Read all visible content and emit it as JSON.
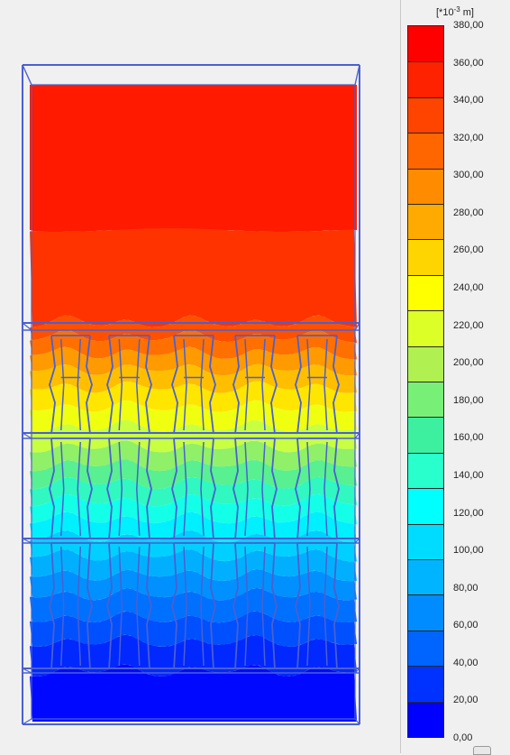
{
  "legend": {
    "unit_prefix": "[*10",
    "unit_exponent": "-3",
    "unit_suffix": " m]",
    "ticks": [
      "380,00",
      "360,00",
      "340,00",
      "320,00",
      "300,00",
      "280,00",
      "260,00",
      "240,00",
      "220,00",
      "200,00",
      "180,00",
      "160,00",
      "140,00",
      "120,00",
      "100,00",
      "80,00",
      "60,00",
      "40,00",
      "20,00",
      "0,00"
    ],
    "colors": [
      "#ff0000",
      "#ff2200",
      "#ff4400",
      "#ff6600",
      "#ff8c00",
      "#ffaa00",
      "#ffd500",
      "#ffff00",
      "#dcff28",
      "#b0f050",
      "#78f078",
      "#3cf0a0",
      "#28ffcc",
      "#00ffff",
      "#00dcff",
      "#00b4ff",
      "#008cff",
      "#0064ff",
      "#0032ff",
      "#0000ff"
    ]
  },
  "model": {
    "quantity_range": [
      0,
      380
    ],
    "contour_top_to_bottom": [
      {
        "value": 370,
        "color": "#ff1a00"
      },
      {
        "value": 350,
        "color": "#ff3300"
      },
      {
        "value": 330,
        "color": "#ff5000"
      },
      {
        "value": 310,
        "color": "#ff7000"
      },
      {
        "value": 290,
        "color": "#ff9a00"
      },
      {
        "value": 270,
        "color": "#ffbf00"
      },
      {
        "value": 250,
        "color": "#ffe600"
      },
      {
        "value": 230,
        "color": "#f0ff10"
      },
      {
        "value": 210,
        "color": "#c8ff40"
      },
      {
        "value": 190,
        "color": "#90f068"
      },
      {
        "value": 170,
        "color": "#58f090"
      },
      {
        "value": 150,
        "color": "#30f8c0"
      },
      {
        "value": 130,
        "color": "#14ffe8"
      },
      {
        "value": 115,
        "color": "#00f0ff"
      },
      {
        "value": 100,
        "color": "#00d0ff"
      },
      {
        "value": 85,
        "color": "#00b0ff"
      },
      {
        "value": 70,
        "color": "#0090ff"
      },
      {
        "value": 55,
        "color": "#0070ff"
      },
      {
        "value": 40,
        "color": "#0050ff"
      },
      {
        "value": 25,
        "color": "#0028ff"
      },
      {
        "value": 10,
        "color": "#0008ff"
      }
    ],
    "wireframe_color": "#4a60d0"
  }
}
